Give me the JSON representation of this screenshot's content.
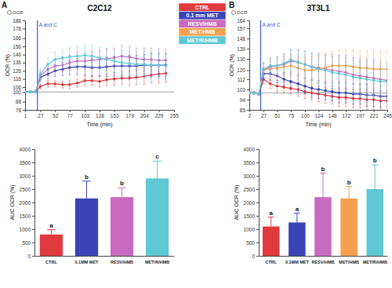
{
  "chart_data": [
    {
      "type": "line",
      "panel": "A",
      "title": "C2C12",
      "key_label": "OCR",
      "x_label": "Time (min)",
      "y_label": "OCR (%)",
      "x": [
        1,
        10,
        19,
        27,
        40,
        52,
        65,
        77,
        90,
        103,
        115,
        128,
        140,
        153,
        166,
        179,
        191,
        204,
        216,
        229,
        241
      ],
      "xlim": [
        1,
        255
      ],
      "xticks": [
        1,
        27,
        52,
        77,
        103,
        128,
        153,
        179,
        204,
        229,
        255
      ],
      "ylim": [
        78,
        188
      ],
      "yticks": [
        78,
        88,
        100,
        106,
        116,
        126,
        136,
        146,
        156,
        166,
        178,
        188
      ],
      "reference_line": 100,
      "annotations": [
        {
          "x": 22,
          "text": "A and C"
        }
      ],
      "series": [
        {
          "name": "CTRL",
          "color": "#e03a3e",
          "values": [
            100,
            100,
            100,
            107,
            110,
            110,
            109,
            109,
            111,
            114,
            114,
            113,
            115,
            116,
            117,
            117,
            118,
            119,
            121,
            122,
            123
          ],
          "errors": [
            1,
            1,
            1,
            3,
            4,
            4,
            4,
            5,
            5,
            6,
            6,
            7,
            7,
            8,
            8,
            9,
            9,
            10,
            10,
            11,
            11
          ]
        },
        {
          "name": "0.1 mm MET",
          "color": "#3b44b5",
          "values": [
            100,
            100,
            100,
            118,
            122,
            126,
            128,
            130,
            131,
            131,
            130,
            130,
            131,
            132,
            132,
            132,
            132,
            133,
            133,
            133,
            133
          ],
          "errors": [
            1,
            1,
            1,
            5,
            6,
            7,
            8,
            9,
            10,
            10,
            11,
            11,
            12,
            12,
            12,
            13,
            13,
            13,
            14,
            14,
            14
          ]
        },
        {
          "name": "RESV/HMB",
          "color": "#c86bc0",
          "values": [
            100,
            100,
            100,
            120,
            128,
            132,
            133,
            136,
            138,
            138,
            139,
            140,
            141,
            142,
            144,
            143,
            141,
            140,
            140,
            139,
            139
          ],
          "errors": [
            1,
            1,
            1,
            5,
            6,
            7,
            8,
            9,
            10,
            10,
            11,
            11,
            12,
            12,
            13,
            13,
            13,
            14,
            14,
            14,
            14
          ]
        },
        {
          "name": "MET/R/HMB",
          "color": "#5ec8d4",
          "values": [
            100,
            100,
            100,
            122,
            134,
            140,
            142,
            143,
            144,
            145,
            144,
            142,
            140,
            138,
            136,
            135,
            134,
            134,
            133,
            133,
            132
          ],
          "errors": [
            1,
            1,
            1,
            6,
            8,
            9,
            10,
            11,
            12,
            12,
            13,
            13,
            14,
            14,
            15,
            15,
            15,
            16,
            16,
            16,
            16
          ]
        }
      ]
    },
    {
      "type": "bar",
      "y_label": "AUC OCR (%)",
      "categories": [
        "CTRL",
        "0.1MM MET",
        "RESV/HMB",
        "MET/R/HMB"
      ],
      "values": [
        800,
        2150,
        2200,
        2900
      ],
      "errors": [
        180,
        650,
        350,
        650
      ],
      "colors": [
        "#e03a3e",
        "#3b44b5",
        "#c86bc0",
        "#5ec8d4"
      ],
      "annotations": [
        "a",
        "b",
        "b",
        "c"
      ],
      "ylim": [
        0,
        4000
      ],
      "yticks": [
        0,
        500,
        1000,
        1500,
        2000,
        2500,
        3000,
        3500,
        4000
      ]
    },
    {
      "type": "line",
      "panel": "B",
      "title": "3T3L1",
      "key_label": "OCR",
      "x_label": "Time (min)",
      "y_label": "OCR (%)",
      "legend": "top-left",
      "x": [
        2,
        10,
        19,
        27,
        39,
        51,
        63,
        75,
        88,
        100,
        112,
        124,
        136,
        148,
        160,
        172,
        185,
        197,
        209,
        221,
        233,
        245
      ],
      "xlim": [
        2,
        245
      ],
      "xticks": [
        2,
        27,
        51,
        75,
        100,
        124,
        148,
        172,
        197,
        221,
        245
      ],
      "ylim": [
        85,
        164
      ],
      "yticks": [
        85,
        94,
        103,
        112,
        120,
        130,
        139,
        148,
        157,
        164
      ],
      "reference_line": 100,
      "annotations": [
        {
          "x": 22,
          "text": "A and C"
        }
      ],
      "series": [
        {
          "name": "CTRL",
          "color": "#e03a3e",
          "values": [
            100,
            100,
            99,
            112,
            108,
            106,
            105,
            104,
            103,
            101,
            100,
            99,
            98,
            97,
            96,
            96,
            95,
            95,
            94,
            94,
            93,
            93
          ],
          "errors": [
            1,
            1,
            1,
            4,
            4,
            5,
            5,
            5,
            6,
            6,
            6,
            7,
            7,
            7,
            8,
            8,
            8,
            8,
            9,
            9,
            9,
            9
          ]
        },
        {
          "name": "0.1 mm MET",
          "color": "#3b44b5",
          "values": [
            100,
            100,
            99,
            117,
            117,
            115,
            112,
            110,
            108,
            106,
            104,
            103,
            102,
            101,
            100,
            100,
            99,
            99,
            98,
            98,
            97,
            97
          ],
          "errors": [
            1,
            1,
            1,
            5,
            6,
            6,
            6,
            7,
            7,
            7,
            8,
            8,
            8,
            8,
            9,
            9,
            9,
            9,
            10,
            10,
            10,
            10
          ]
        },
        {
          "name": "RESV/HMB",
          "color": "#c86bc0",
          "values": [
            100,
            100,
            99,
            120,
            123,
            124,
            125,
            128,
            127,
            125,
            123,
            122,
            121,
            120,
            119,
            118,
            116,
            115,
            114,
            113,
            112,
            111
          ],
          "errors": [
            1,
            1,
            1,
            6,
            7,
            8,
            9,
            10,
            11,
            12,
            12,
            13,
            13,
            14,
            14,
            15,
            15,
            15,
            16,
            16,
            16,
            16
          ]
        },
        {
          "name": "MET/HMB",
          "color": "#f4a04e",
          "values": [
            100,
            100,
            99,
            121,
            121,
            122,
            123,
            124,
            122,
            120,
            120,
            121,
            122,
            124,
            124,
            124,
            123,
            122,
            122,
            121,
            121,
            121
          ],
          "errors": [
            1,
            1,
            1,
            6,
            7,
            8,
            9,
            10,
            10,
            11,
            12,
            12,
            13,
            13,
            14,
            14,
            15,
            15,
            15,
            16,
            16,
            16
          ]
        },
        {
          "name": "MET/R/HMB",
          "color": "#5ec8d4",
          "values": [
            100,
            100,
            99,
            121,
            124,
            124,
            126,
            129,
            127,
            125,
            123,
            121,
            120,
            118,
            117,
            116,
            114,
            113,
            112,
            111,
            110,
            110
          ],
          "errors": [
            1,
            1,
            1,
            6,
            7,
            8,
            9,
            10,
            11,
            12,
            12,
            13,
            13,
            14,
            14,
            15,
            15,
            15,
            16,
            16,
            16,
            16
          ]
        }
      ]
    },
    {
      "type": "bar",
      "y_label": "AUC OCR (%)",
      "categories": [
        "CTRL",
        "0.1MM MET",
        "RESV/HMB",
        "MET/HMB",
        "MET/R/HMB"
      ],
      "values": [
        1100,
        1250,
        2200,
        2150,
        2500
      ],
      "errors": [
        350,
        350,
        900,
        450,
        900
      ],
      "colors": [
        "#e03a3e",
        "#3b44b5",
        "#c86bc0",
        "#f4a04e",
        "#5ec8d4"
      ],
      "annotations": [
        "a",
        "a",
        "b",
        "b",
        "b"
      ],
      "ylim": [
        0,
        4000
      ],
      "yticks": [
        0,
        500,
        1000,
        1500,
        2000,
        2500,
        3000,
        3500,
        4000
      ]
    }
  ]
}
